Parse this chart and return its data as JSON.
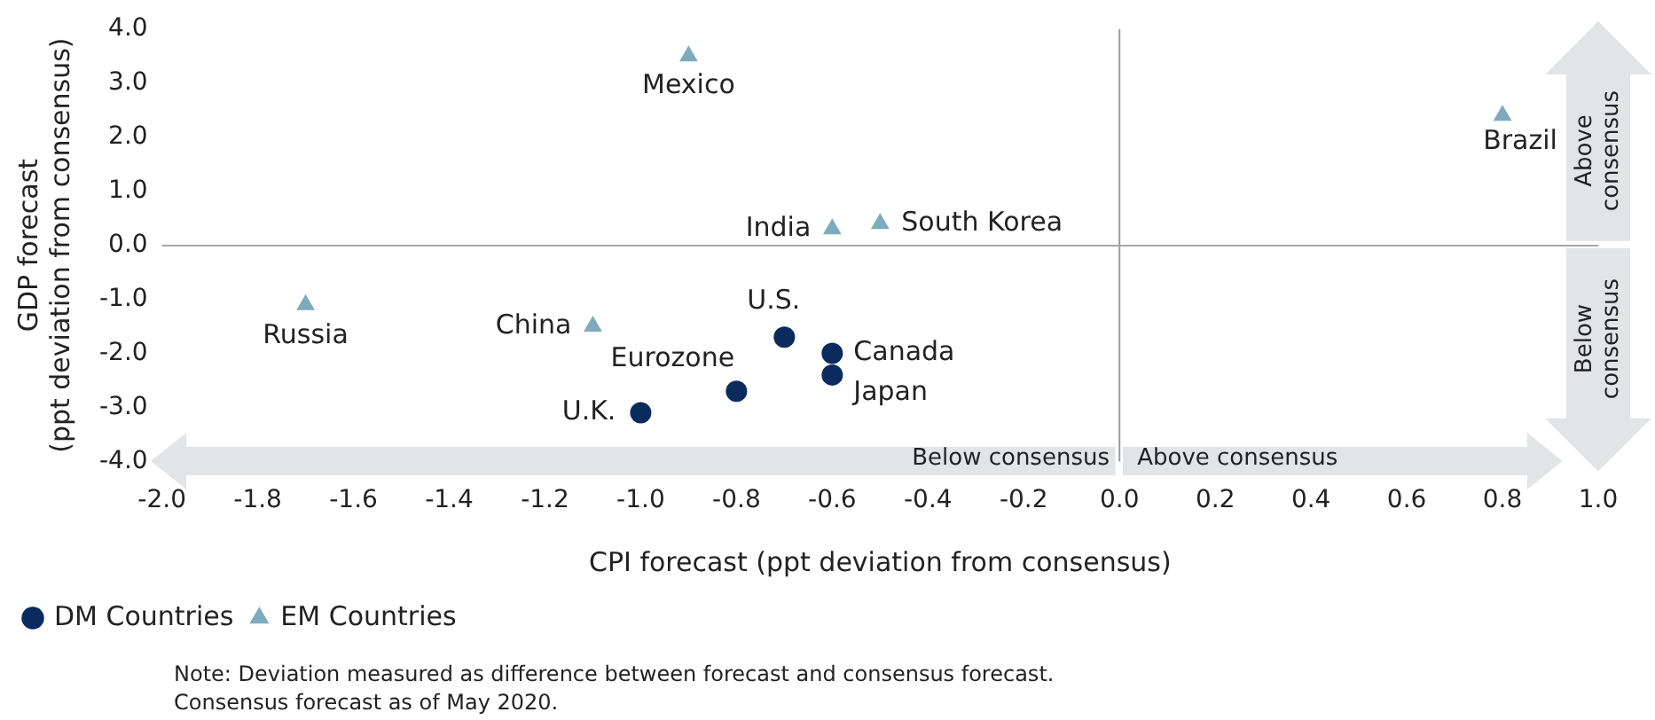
{
  "chart_data": {
    "type": "scatter",
    "xlabel": "CPI forecast (ppt deviation from consensus)",
    "ylabel": "GDP forecast\n(ppt deviation from consensus)",
    "xlim": [
      -2.0,
      1.0
    ],
    "xticks": [
      {
        "value": -2,
        "label": "-2.0"
      },
      {
        "value": -1.8,
        "label": "-1.8"
      },
      {
        "value": -1.6,
        "label": "-1.6"
      },
      {
        "value": -1.4,
        "label": "-1.4"
      },
      {
        "value": -1.2,
        "label": "-1.2"
      },
      {
        "value": -1,
        "label": "-1.0"
      },
      {
        "value": -0.8,
        "label": "-0.8"
      },
      {
        "value": -0.6,
        "label": "-0.6"
      },
      {
        "value": -0.4,
        "label": "-0.4"
      },
      {
        "value": -0.2,
        "label": "-0.2"
      },
      {
        "value": 0,
        "label": "0.0"
      },
      {
        "value": 0.2,
        "label": "0.2"
      },
      {
        "value": 0.4,
        "label": "0.4"
      },
      {
        "value": 0.6,
        "label": "0.6"
      },
      {
        "value": 0.8,
        "label": "0.8"
      },
      {
        "value": 1,
        "label": "1.0"
      }
    ],
    "ylim": [
      -4.0,
      4.0
    ],
    "yticks": [
      {
        "value": -4,
        "label": "-4.0"
      },
      {
        "value": -3,
        "label": "-3.0"
      },
      {
        "value": -2,
        "label": "-2.0"
      },
      {
        "value": -1,
        "label": "-1.0"
      },
      {
        "value": 0,
        "label": "0.0"
      },
      {
        "value": 1,
        "label": "1.0"
      },
      {
        "value": 2,
        "label": "2.0"
      },
      {
        "value": 3,
        "label": "3.0"
      },
      {
        "value": 4,
        "label": "4.0"
      }
    ],
    "series": [
      {
        "name": "DM Countries",
        "color": "#0b2a5e",
        "marker": "circle",
        "x": [
          -0.7,
          -0.6,
          -0.6,
          -0.8,
          -1.0
        ],
        "values": [
          -1.7,
          -2.0,
          -2.4,
          -2.7,
          -3.1
        ]
      },
      {
        "name": "EM Countries",
        "color": "#7eaabd",
        "marker": "triangle",
        "x": [
          -0.9,
          0.8,
          -0.6,
          -0.5,
          -1.7,
          -1.1
        ],
        "values": [
          3.5,
          2.4,
          0.3,
          0.4,
          -1.1,
          -1.5
        ]
      }
    ],
    "ref_lines": [
      {
        "axis": "x",
        "value": 0,
        "color": "#9a9a9a"
      },
      {
        "axis": "y",
        "value": 0,
        "color": "#a6a6a6"
      }
    ],
    "legend": "bottom",
    "grid": false,
    "annotations": [
      {
        "text": "Mexico",
        "x": -0.9,
        "y": 3.5
      },
      {
        "text": "Brazil",
        "x": 0.8,
        "y": 2.4
      },
      {
        "text": "India",
        "x": -0.6,
        "y": 0.3
      },
      {
        "text": "South Korea",
        "x": -0.5,
        "y": 0.4
      },
      {
        "text": "Russia",
        "x": -1.7,
        "y": -1.1
      },
      {
        "text": "China",
        "x": -1.1,
        "y": -1.5
      },
      {
        "text": "U.S.",
        "x": -0.7,
        "y": -1.7
      },
      {
        "text": "Canada",
        "x": -0.6,
        "y": -2.0
      },
      {
        "text": "Japan",
        "x": -0.6,
        "y": -2.4
      },
      {
        "text": "Eurozone",
        "x": -0.8,
        "y": -2.7
      },
      {
        "text": "U.K.",
        "x": -1.0,
        "y": -3.1
      },
      "Below consensus",
      "Above consensus",
      "Above consensus",
      "Below consensus",
      "Note: Deviation measured as difference between forecast and consensus forecast.",
      "Consensus forecast as of May 2020."
    ]
  }
}
